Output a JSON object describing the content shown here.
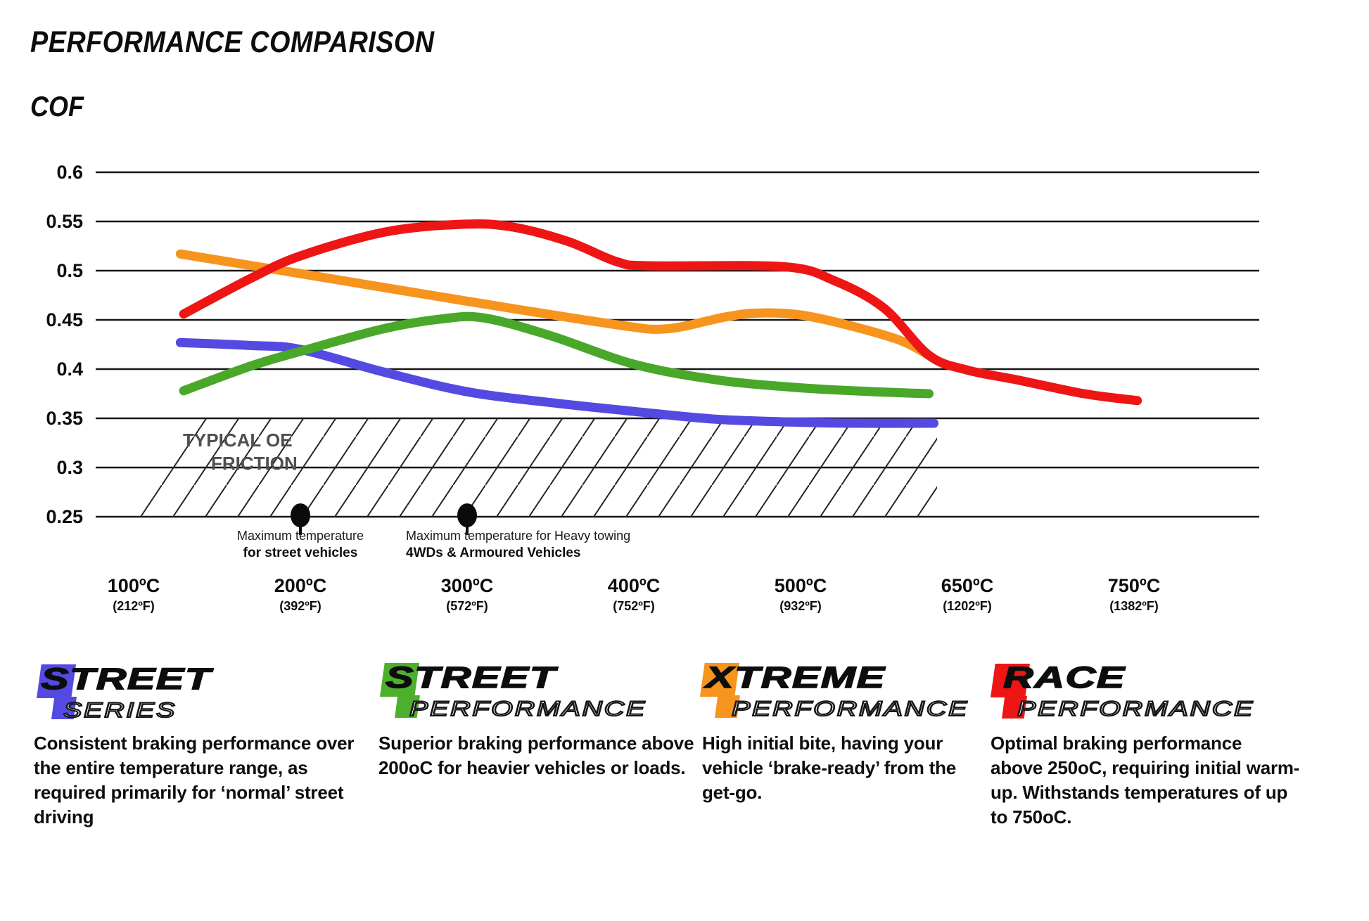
{
  "title": "PERFORMANCE COMPARISON",
  "y_axis_title": "COF",
  "chart_data": {
    "type": "line",
    "ylim": [
      0.25,
      0.6
    ],
    "grid": "horizontal",
    "legend_position": "bottom",
    "y_ticks": [
      "0.6",
      "0.55",
      "0.5",
      "0.45",
      "0.4",
      "0.35",
      "0.3",
      "0.25"
    ],
    "categories": [
      "100ºC",
      "200ºC",
      "300ºC",
      "400ºC",
      "500ºC",
      "650ºC",
      "750ºC"
    ],
    "categories_fahrenheit": [
      "(212ºF)",
      "(392ºF)",
      "(572ºF)",
      "(752ºF)",
      "(932ºF)",
      "(1202ºF)",
      "(1382ºF)"
    ],
    "series": [
      {
        "id": "street-series",
        "name": "Street Series",
        "color": "#544ae2",
        "values": [
          0.427,
          0.42,
          0.377,
          0.357,
          0.346,
          0.345,
          null
        ],
        "anchors": [
          [
            0.28,
            0.427
          ],
          [
            0.7,
            0.424
          ],
          [
            1,
            0.42
          ],
          [
            1.5,
            0.397
          ],
          [
            2,
            0.377
          ],
          [
            2.5,
            0.366
          ],
          [
            3,
            0.357
          ],
          [
            3.5,
            0.349
          ],
          [
            4,
            0.346
          ],
          [
            4.3,
            0.345
          ],
          [
            4.8,
            0.345
          ]
        ]
      },
      {
        "id": "street-performance",
        "name": "Street Performance",
        "color": "#49a829",
        "values": [
          0.378,
          0.418,
          0.452,
          0.405,
          0.381,
          0.375,
          null
        ],
        "anchors": [
          [
            0.3,
            0.378
          ],
          [
            0.7,
            0.403
          ],
          [
            1,
            0.418
          ],
          [
            1.5,
            0.441
          ],
          [
            1.85,
            0.451
          ],
          [
            2.1,
            0.452
          ],
          [
            2.5,
            0.434
          ],
          [
            3,
            0.405
          ],
          [
            3.5,
            0.389
          ],
          [
            4,
            0.381
          ],
          [
            4.45,
            0.377
          ],
          [
            4.77,
            0.375
          ]
        ]
      },
      {
        "id": "xtreme-performance",
        "name": "Xtreme Performance",
        "color": "#f7941e",
        "values": [
          0.517,
          0.497,
          0.469,
          0.444,
          0.455,
          0.414,
          null
        ],
        "anchors": [
          [
            0.28,
            0.517
          ],
          [
            1,
            0.497
          ],
          [
            2,
            0.469
          ],
          [
            2.9,
            0.445
          ],
          [
            3.2,
            0.441
          ],
          [
            3.55,
            0.453
          ],
          [
            3.75,
            0.457
          ],
          [
            4,
            0.455
          ],
          [
            4.3,
            0.444
          ],
          [
            4.6,
            0.429
          ],
          [
            4.77,
            0.414
          ]
        ]
      },
      {
        "id": "race-performance",
        "name": "Race Performance",
        "color": "#ee1515",
        "values": [
          0.456,
          0.515,
          0.547,
          0.506,
          0.504,
          0.4,
          0.368
        ],
        "anchors": [
          [
            0.3,
            0.456
          ],
          [
            0.7,
            0.492
          ],
          [
            1,
            0.515
          ],
          [
            1.5,
            0.539
          ],
          [
            1.95,
            0.547
          ],
          [
            2.25,
            0.545
          ],
          [
            2.6,
            0.53
          ],
          [
            2.9,
            0.509
          ],
          [
            3.1,
            0.505
          ],
          [
            3.9,
            0.504
          ],
          [
            4.2,
            0.49
          ],
          [
            4.5,
            0.462
          ],
          [
            4.77,
            0.414
          ],
          [
            5,
            0.399
          ],
          [
            5.3,
            0.389
          ],
          [
            5.7,
            0.375
          ],
          [
            6.02,
            0.368
          ]
        ]
      }
    ],
    "oe_zone": {
      "label_line1": "TYPICAL OE",
      "label_line2": "FRICTION",
      "value_range": [
        0.25,
        0.35
      ]
    },
    "markers": [
      {
        "category_index": 1,
        "at": "200ºC",
        "line1": "Maximum temperature",
        "line2": "for street vehicles"
      },
      {
        "category_index": 2,
        "at": "300ºC",
        "line1": "Maximum temperature for Heavy towing",
        "line2": "4WDs & Armoured Vehicles"
      }
    ]
  },
  "legend": {
    "items": [
      {
        "word_top": "STREET",
        "word_bottom": "SERIES",
        "color": "#544ae2",
        "description": "Consistent braking performance over\nthe entire temperature range, as\nrequired primarily for ‘normal’ street\ndriving"
      },
      {
        "word_top": "STREET",
        "word_bottom": "PERFORMANCE",
        "color": "#4cb02c",
        "description": "Superior braking performance above\n200oC for heavier vehicles or loads."
      },
      {
        "word_top": "XTREME",
        "word_bottom": "PERFORMANCE",
        "color": "#f7941e",
        "description": "High initial bite, having your\nvehicle ‘brake-ready’ from the\nget-go."
      },
      {
        "word_top": "RACE",
        "word_bottom": "PERFORMANCE",
        "color": "#ee1515",
        "description": "Optimal braking performance\nabove 250oC, requiring initial warm-\nup. Withstands temperatures of up\nto 750oC."
      }
    ]
  }
}
